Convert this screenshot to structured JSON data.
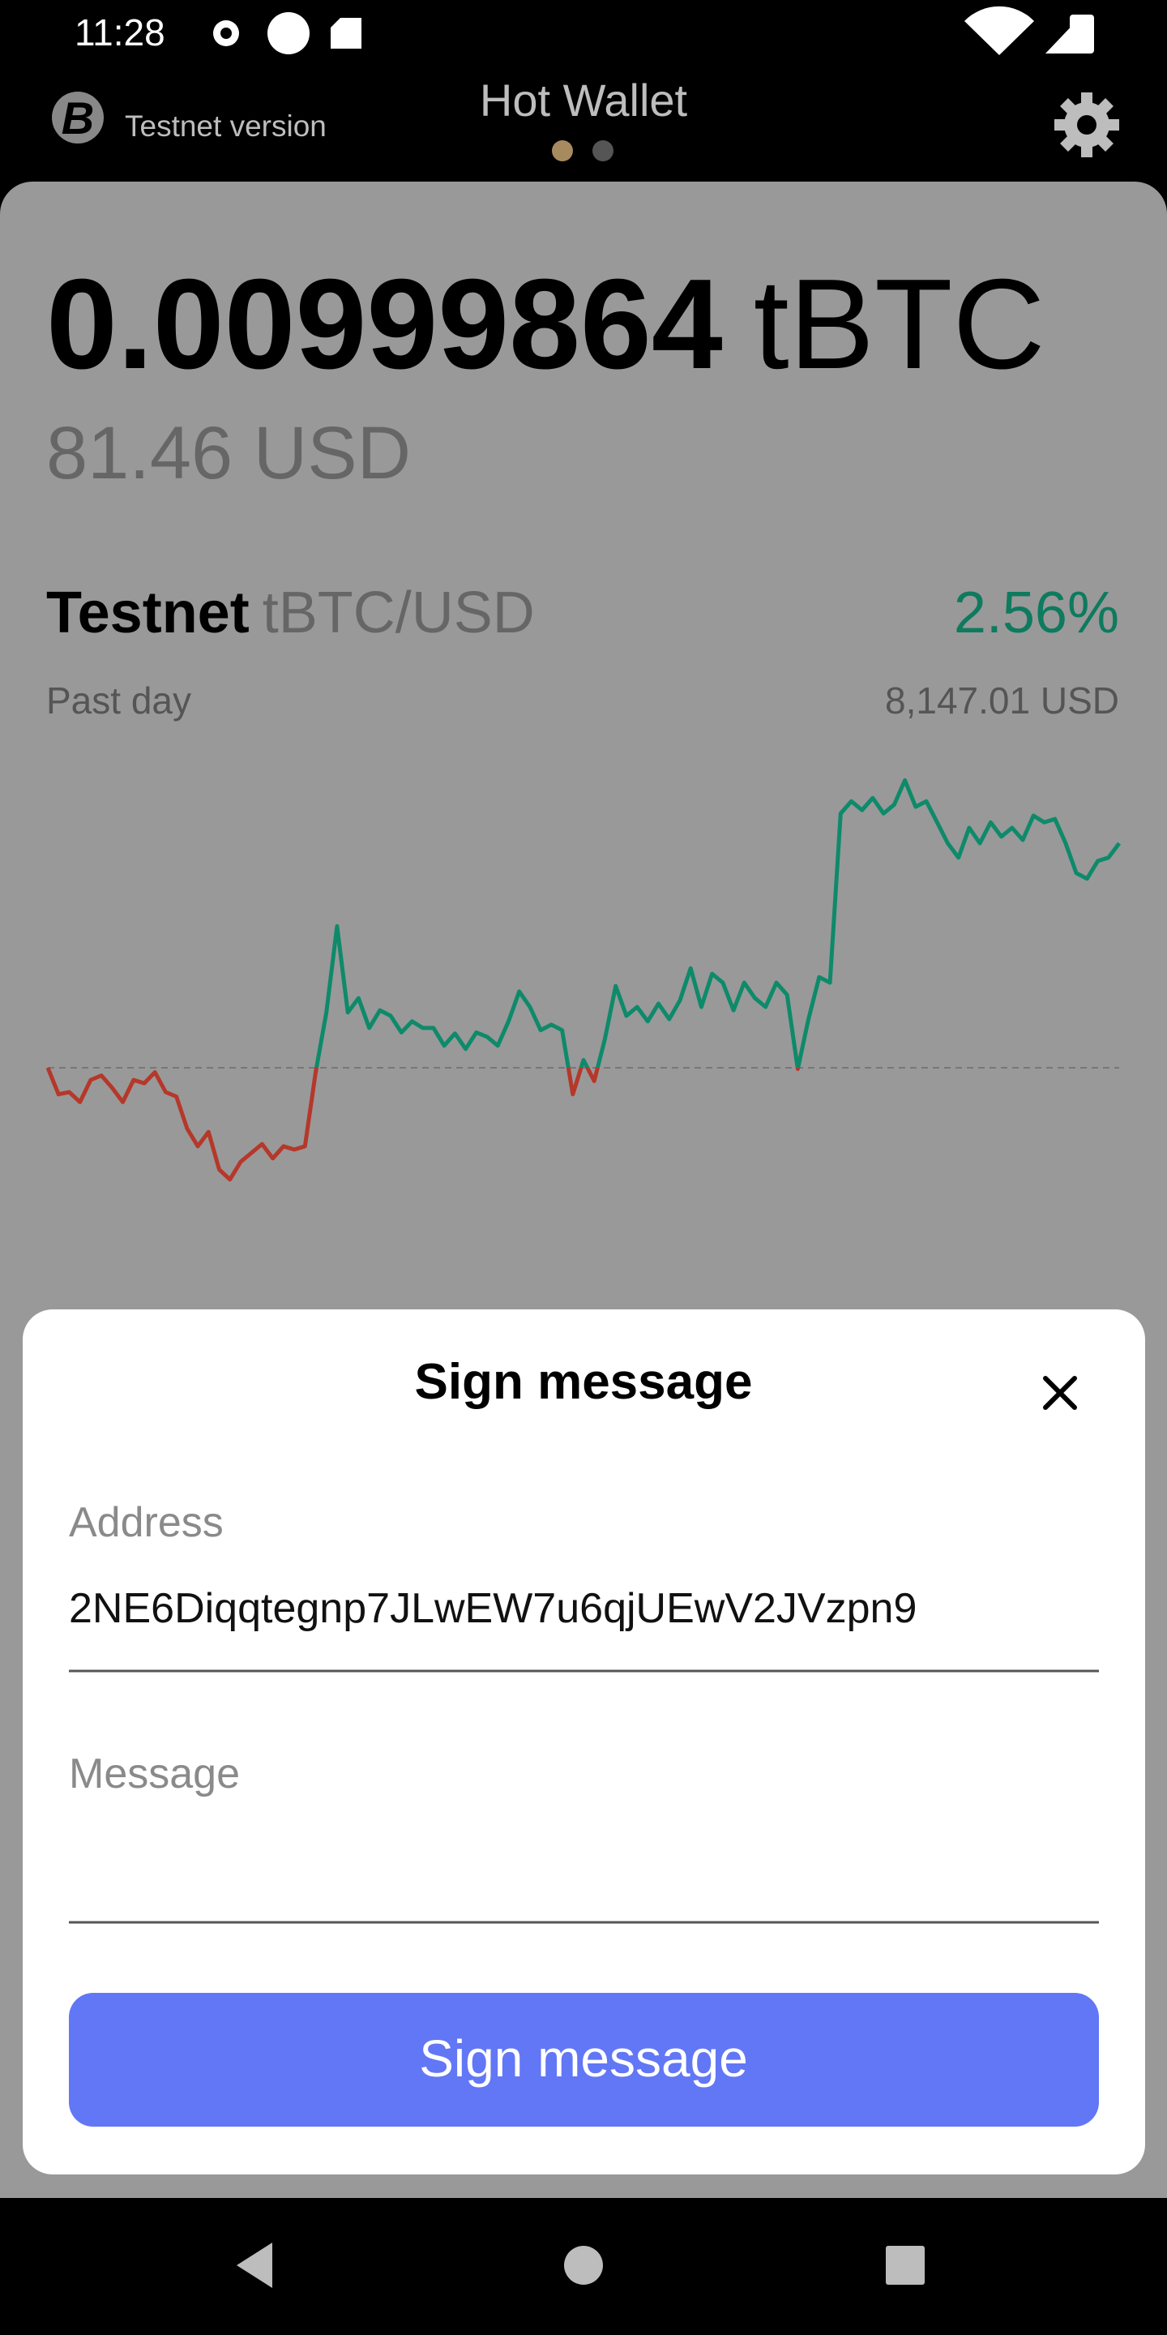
{
  "status_bar": {
    "time": "11:28"
  },
  "header": {
    "subtitle": "Testnet version",
    "title": "Hot Wallet"
  },
  "balance": {
    "amount": "0.00999864",
    "unit": "tBTC",
    "fiat": "81.46 USD"
  },
  "price": {
    "network": "Testnet",
    "pair": "tBTC/USD",
    "change": "2.56%",
    "period": "Past day",
    "price": "8,147.01 USD",
    "chart": {
      "type": "line",
      "baseline": 7944,
      "values": [
        7944,
        7920,
        7922,
        7913,
        7933,
        7937,
        7926,
        7913,
        7933,
        7930,
        7940,
        7922,
        7918,
        7889,
        7873,
        7886,
        7852,
        7843,
        7859,
        7867,
        7875,
        7862,
        7873,
        7870,
        7873,
        7940,
        7994,
        8072,
        7994,
        8007,
        7980,
        7996,
        7991,
        7976,
        7986,
        7980,
        7980,
        7964,
        7975,
        7961,
        7976,
        7972,
        7964,
        7986,
        8013,
        7999,
        7978,
        7983,
        7978,
        7920,
        7951,
        7932,
        7970,
        8018,
        7991,
        7999,
        7986,
        8002,
        7988,
        8005,
        8034,
        7999,
        8029,
        8021,
        7996,
        8021,
        8007,
        7999,
        8021,
        8010,
        7943,
        7988,
        8026,
        8021,
        8174,
        8185,
        8177,
        8188,
        8174,
        8182,
        8204,
        8180,
        8185,
        8166,
        8147,
        8134,
        8161,
        8147,
        8166,
        8153,
        8161,
        8150,
        8172,
        8166,
        8169,
        8147,
        8120,
        8115,
        8131,
        8134,
        8147
      ]
    }
  },
  "dialog": {
    "title": "Sign message",
    "fields": [
      {
        "label": "Address",
        "value": "2NE6Diqqtegnp7JLwEW7u6qjUEwV2JVzpn9"
      },
      {
        "label": "Message"
      }
    ],
    "button": "Sign message"
  }
}
